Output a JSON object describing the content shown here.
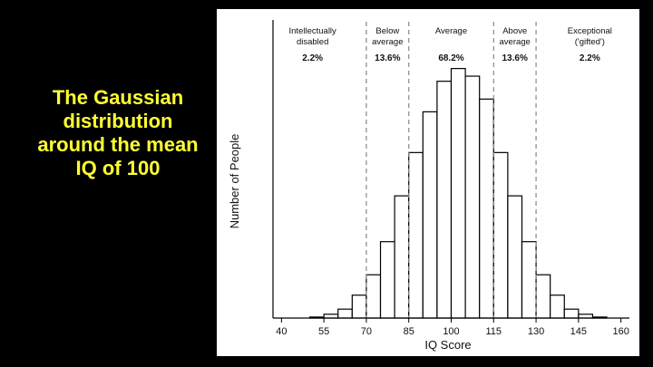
{
  "slide": {
    "title": "The Gaussian distribution around the mean IQ of 100"
  },
  "chart_data": {
    "type": "bar",
    "title": "",
    "xlabel": "IQ Score",
    "ylabel": "Number of People",
    "x_ticks": [
      40,
      55,
      70,
      85,
      100,
      115,
      130,
      145,
      160
    ],
    "xlim": [
      37,
      163
    ],
    "ylim": [
      0,
      100
    ],
    "bin_width": 5,
    "bins": [
      {
        "start": 50,
        "value": 0.4
      },
      {
        "start": 55,
        "value": 1.5
      },
      {
        "start": 60,
        "value": 3.5
      },
      {
        "start": 65,
        "value": 9
      },
      {
        "start": 70,
        "value": 17
      },
      {
        "start": 75,
        "value": 30
      },
      {
        "start": 80,
        "value": 48
      },
      {
        "start": 85,
        "value": 65
      },
      {
        "start": 90,
        "value": 81
      },
      {
        "start": 95,
        "value": 93
      },
      {
        "start": 100,
        "value": 98
      },
      {
        "start": 105,
        "value": 95
      },
      {
        "start": 110,
        "value": 86
      },
      {
        "start": 115,
        "value": 65
      },
      {
        "start": 120,
        "value": 48
      },
      {
        "start": 125,
        "value": 30
      },
      {
        "start": 130,
        "value": 17
      },
      {
        "start": 135,
        "value": 9
      },
      {
        "start": 140,
        "value": 3.5
      },
      {
        "start": 145,
        "value": 1.5
      },
      {
        "start": 150,
        "value": 0.4
      }
    ],
    "dividers": [
      70,
      85,
      115,
      130
    ],
    "regions": [
      {
        "label_line1": "Intellectually",
        "label_line2": "disabled",
        "percent": "2.2%",
        "center": 51
      },
      {
        "label_line1": "Below",
        "label_line2": "average",
        "percent": "13.6%",
        "center": 77.5
      },
      {
        "label_line1": "Average",
        "label_line2": "",
        "percent": "68.2%",
        "center": 100
      },
      {
        "label_line1": "Above",
        "label_line2": "average",
        "percent": "13.6%",
        "center": 122.5
      },
      {
        "label_line1": "Exceptional",
        "label_line2": "('gifted')",
        "percent": "2.2%",
        "center": 149
      }
    ]
  }
}
